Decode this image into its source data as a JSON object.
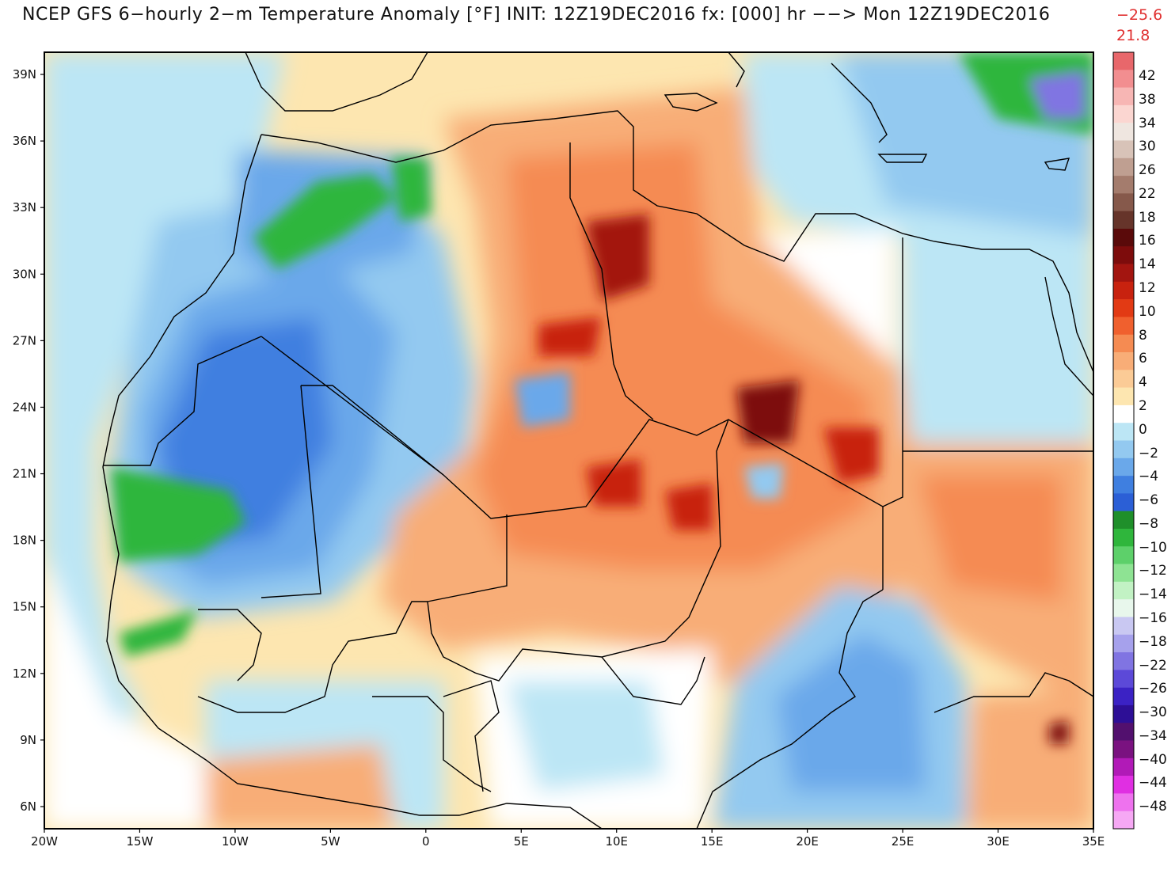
{
  "header": {
    "title": "NCEP GFS 6−hourly 2−m Temperature Anomaly [°F] INIT: 12Z19DEC2016 fx: [000] hr −−> Mon 12Z19DEC2016",
    "min_value": "−25.6",
    "max_value": "21.8"
  },
  "map": {
    "lat_labels": [
      {
        "text": "39N",
        "lat": 39
      },
      {
        "text": "36N",
        "lat": 36
      },
      {
        "text": "33N",
        "lat": 33
      },
      {
        "text": "30N",
        "lat": 30
      },
      {
        "text": "27N",
        "lat": 27
      },
      {
        "text": "24N",
        "lat": 24
      },
      {
        "text": "21N",
        "lat": 21
      },
      {
        "text": "18N",
        "lat": 18
      },
      {
        "text": "15N",
        "lat": 15
      },
      {
        "text": "12N",
        "lat": 12
      },
      {
        "text": "9N",
        "lat": 9
      },
      {
        "text": "6N",
        "lat": 6
      }
    ],
    "lon_labels": [
      {
        "text": "20W",
        "lon": -20
      },
      {
        "text": "15W",
        "lon": -15
      },
      {
        "text": "10W",
        "lon": -10
      },
      {
        "text": "5W",
        "lon": -5
      },
      {
        "text": "0",
        "lon": 0
      },
      {
        "text": "5E",
        "lon": 5
      },
      {
        "text": "10E",
        "lon": 10
      },
      {
        "text": "15E",
        "lon": 15
      },
      {
        "text": "20E",
        "lon": 20
      },
      {
        "text": "25E",
        "lon": 25
      },
      {
        "text": "30E",
        "lon": 30
      },
      {
        "text": "35E",
        "lon": 35
      }
    ],
    "extent": {
      "lon_min": -20,
      "lon_max": 35,
      "lat_min": 5,
      "lat_max": 40
    }
  },
  "colorbar": {
    "labels": [
      "42",
      "38",
      "34",
      "30",
      "26",
      "22",
      "18",
      "16",
      "14",
      "12",
      "10",
      "8",
      "6",
      "4",
      "2",
      "0",
      "−2",
      "−4",
      "−6",
      "−8",
      "−10",
      "−12",
      "−14",
      "−16",
      "−18",
      "−22",
      "−26",
      "−30",
      "−34",
      "−40",
      "−44",
      "−48"
    ],
    "colors": [
      "#e8676b",
      "#f28e90",
      "#f7b6b4",
      "#fbd6d1",
      "#efe6e0",
      "#d8c3b8",
      "#bf9f91",
      "#a47c6d",
      "#86594b",
      "#66342a",
      "#5a0a0a",
      "#7d0c0c",
      "#a31510",
      "#c8220f",
      "#e23a14",
      "#f0602e",
      "#f58b52",
      "#f8ad77",
      "#fbcb96",
      "#fde6b0",
      "#ffffff",
      "#bce6f5",
      "#93c9f0",
      "#6aa8ea",
      "#3f7fe0",
      "#2b5fd6",
      "#1f8f2a",
      "#2fb63c",
      "#5dd06a",
      "#8ee393",
      "#c2f2c4",
      "#e8f7ec",
      "#c9c8f2",
      "#a6a1ec",
      "#8074e2",
      "#5c49d8",
      "#3b22c4",
      "#2d0f96",
      "#52106e",
      "#7a1280",
      "#b11ab7",
      "#e02fe2",
      "#ee72ee",
      "#f6a8f4"
    ]
  }
}
